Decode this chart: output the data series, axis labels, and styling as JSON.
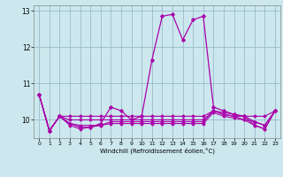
{
  "xlabel": "Windchill (Refroidissement éolien,°C)",
  "bg_color": "#cce8ee",
  "line_color": "#aa00aa",
  "grid_color": "#99bbcc",
  "x_values": [
    0,
    1,
    2,
    3,
    4,
    5,
    6,
    7,
    8,
    9,
    10,
    11,
    12,
    13,
    14,
    15,
    16,
    17,
    18,
    19,
    20,
    21,
    22,
    23
  ],
  "series": [
    [
      10.7,
      9.7,
      10.1,
      9.9,
      9.8,
      9.8,
      9.9,
      10.35,
      10.25,
      10.0,
      10.1,
      11.65,
      12.85,
      12.9,
      12.2,
      12.75,
      12.85,
      10.35,
      10.25,
      10.15,
      10.1,
      9.95,
      9.85,
      10.25
    ],
    [
      10.7,
      9.7,
      10.1,
      10.1,
      10.1,
      10.1,
      10.1,
      10.1,
      10.1,
      10.1,
      10.1,
      10.1,
      10.1,
      10.1,
      10.1,
      10.1,
      10.1,
      10.25,
      10.2,
      10.15,
      10.1,
      10.1,
      10.1,
      10.25
    ],
    [
      10.7,
      9.7,
      10.1,
      10.0,
      10.0,
      10.0,
      10.0,
      10.0,
      10.0,
      10.0,
      10.0,
      10.0,
      10.0,
      10.0,
      10.0,
      10.0,
      10.0,
      10.25,
      10.15,
      10.1,
      10.0,
      9.95,
      9.85,
      10.25
    ],
    [
      10.7,
      9.7,
      10.1,
      9.85,
      9.75,
      9.8,
      9.85,
      9.95,
      9.95,
      9.95,
      9.95,
      9.95,
      9.95,
      9.95,
      9.95,
      9.95,
      9.95,
      10.25,
      10.15,
      10.1,
      10.1,
      9.85,
      9.75,
      10.25
    ],
    [
      10.7,
      9.7,
      10.1,
      9.9,
      9.85,
      9.85,
      9.85,
      9.9,
      9.9,
      9.9,
      9.9,
      9.9,
      9.9,
      9.9,
      9.9,
      9.9,
      9.9,
      10.2,
      10.1,
      10.05,
      10.0,
      9.85,
      9.75,
      10.25
    ]
  ],
  "ylim": [
    9.5,
    13.15
  ],
  "yticks": [
    10,
    11,
    12,
    13
  ],
  "xlim": [
    -0.5,
    23.5
  ],
  "xticks": [
    0,
    1,
    2,
    3,
    4,
    5,
    6,
    7,
    8,
    9,
    10,
    11,
    12,
    13,
    14,
    15,
    16,
    17,
    18,
    19,
    20,
    21,
    22,
    23
  ],
  "figsize": [
    3.2,
    2.0
  ],
  "dpi": 100
}
